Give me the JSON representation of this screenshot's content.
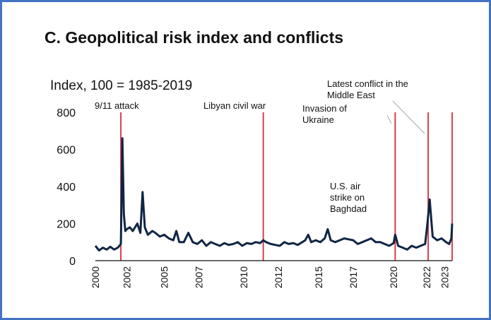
{
  "colors": {
    "series": "#0f2544",
    "event_line": "#d62d3a",
    "frame": "#4472c4"
  },
  "chart_data": {
    "type": "line",
    "title": "C. Geopolitical risk index and conflicts",
    "subtitle": "Index, 100 = 1985-2019",
    "xlabel": "",
    "ylabel": "",
    "xlim": [
      2000,
      2023.8
    ],
    "ylim": [
      0,
      800
    ],
    "x_ticks": [
      "2000",
      "2002",
      "2005",
      "2007",
      "2010",
      "2012",
      "2015",
      "2017",
      "2020",
      "2022",
      "2023"
    ],
    "x_tick_years": [
      2000,
      2002.1,
      2004.6,
      2006.9,
      2009.9,
      2012.2,
      2014.9,
      2017.2,
      2019.9,
      2022.1,
      2023.3
    ],
    "y_ticks": [
      "0",
      "200",
      "400",
      "600",
      "800"
    ],
    "y_tick_values": [
      0,
      200,
      400,
      600,
      800
    ],
    "events": [
      {
        "label": "9/11 attack",
        "year": 2001.7
      },
      {
        "label": "Libyan civil war",
        "year": 2011.2
      },
      {
        "label": "U.S. air strike on Baghdad",
        "year": 2020.0
      },
      {
        "label": "Invasion of Ukraine",
        "year": 2022.2
      },
      {
        "label": "Latest conflict in the Middle East",
        "year": 2023.8
      }
    ],
    "series": [
      {
        "x": [
          2000.0,
          2000.25,
          2000.5,
          2000.75,
          2001.0,
          2001.25,
          2001.5,
          2001.7,
          2001.8,
          2001.9,
          2002.0,
          2002.1,
          2002.3,
          2002.5,
          2002.8,
          2003.0,
          2003.15,
          2003.3,
          2003.5,
          2003.8,
          2004.0,
          2004.3,
          2004.6,
          2004.9,
          2005.2,
          2005.4,
          2005.6,
          2005.9,
          2006.2,
          2006.5,
          2006.8,
          2007.1,
          2007.4,
          2007.7,
          2008.0,
          2008.3,
          2008.6,
          2008.9,
          2009.2,
          2009.5,
          2009.8,
          2010.1,
          2010.4,
          2010.7,
          2011.0,
          2011.2,
          2011.4,
          2011.7,
          2012.0,
          2012.3,
          2012.6,
          2012.9,
          2013.2,
          2013.5,
          2013.8,
          2014.0,
          2014.2,
          2014.4,
          2014.7,
          2015.0,
          2015.3,
          2015.5,
          2015.7,
          2016.0,
          2016.3,
          2016.6,
          2016.9,
          2017.2,
          2017.5,
          2017.8,
          2018.1,
          2018.4,
          2018.7,
          2019.0,
          2019.3,
          2019.6,
          2019.9,
          2020.0,
          2020.2,
          2020.5,
          2020.8,
          2021.1,
          2021.4,
          2021.7,
          2022.0,
          2022.15,
          2022.3,
          2022.5,
          2022.8,
          2023.1,
          2023.4,
          2023.6,
          2023.75,
          2023.8
        ],
        "values": [
          80,
          55,
          70,
          60,
          75,
          60,
          70,
          90,
          660,
          250,
          160,
          170,
          180,
          160,
          200,
          150,
          370,
          180,
          140,
          160,
          150,
          130,
          140,
          120,
          110,
          160,
          100,
          100,
          150,
          100,
          90,
          110,
          80,
          100,
          90,
          80,
          95,
          85,
          90,
          100,
          80,
          95,
          90,
          100,
          95,
          110,
          100,
          90,
          85,
          80,
          100,
          90,
          95,
          85,
          100,
          110,
          140,
          100,
          110,
          100,
          120,
          170,
          110,
          100,
          110,
          120,
          115,
          110,
          90,
          100,
          110,
          120,
          100,
          100,
          90,
          80,
          95,
          140,
          80,
          70,
          60,
          80,
          70,
          80,
          90,
          200,
          330,
          130,
          110,
          120,
          100,
          90,
          120,
          200
        ]
      }
    ]
  }
}
